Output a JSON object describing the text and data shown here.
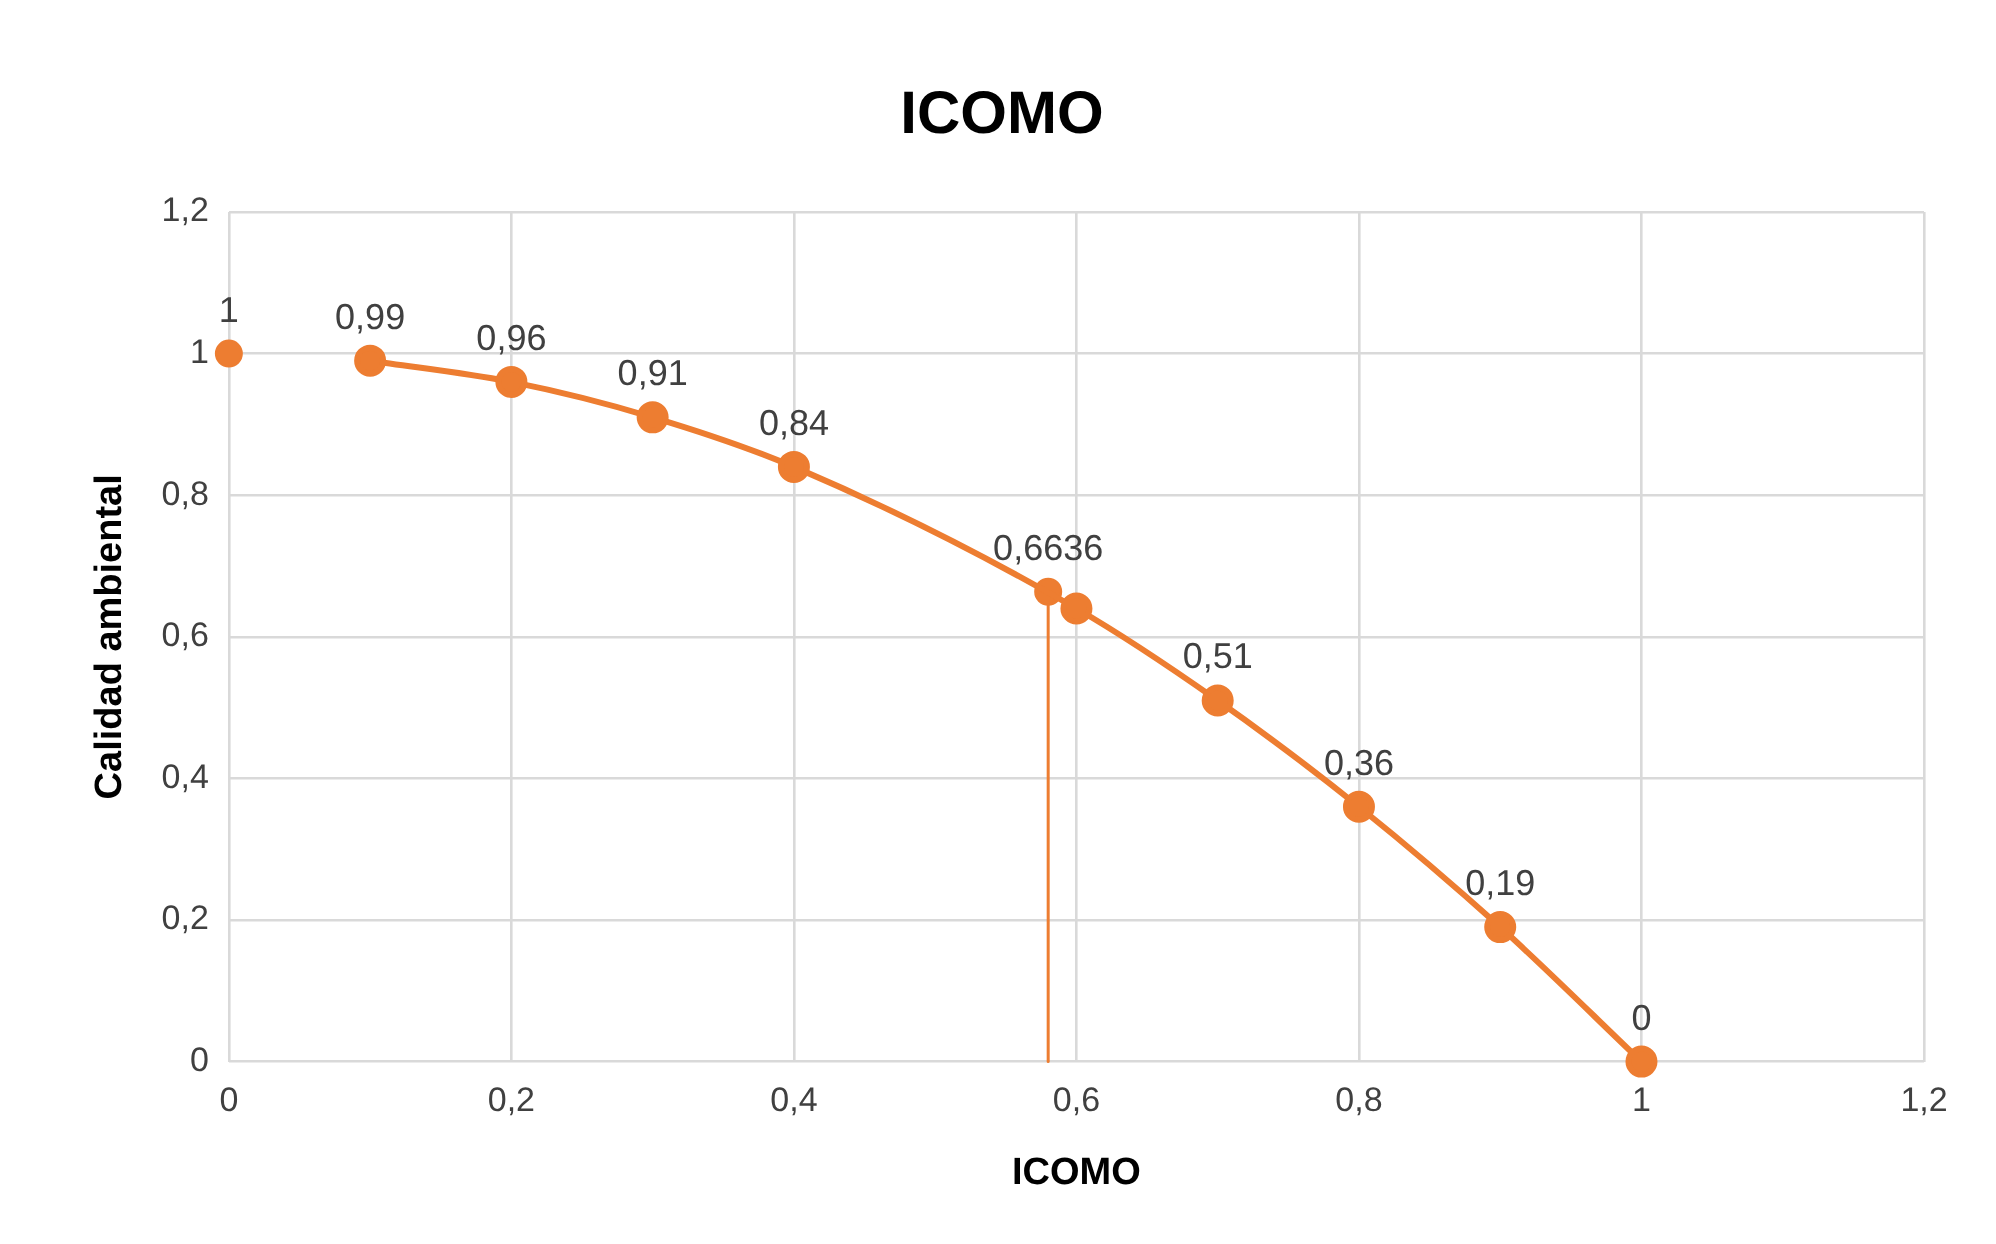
{
  "chart_data": {
    "type": "line",
    "title": "ICOMO",
    "xlabel": "ICOMO",
    "ylabel": "Calidad ambiental",
    "xlim": [
      0,
      1.2
    ],
    "ylim": [
      0,
      1.2
    ],
    "xticks": [
      0,
      {
        "value": 0.2,
        "label": "0,2"
      },
      {
        "value": 0.4,
        "label": "0,4"
      },
      {
        "value": 0.6,
        "label": "0,6"
      },
      {
        "value": 0.8,
        "label": "0,8"
      },
      1,
      {
        "value": 1.2,
        "label": "1,2"
      }
    ],
    "yticks": [
      0,
      {
        "value": 0.2,
        "label": "0,2"
      },
      {
        "value": 0.4,
        "label": "0,4"
      },
      {
        "value": 0.6,
        "label": "0,6"
      },
      {
        "value": 0.8,
        "label": "0,8"
      },
      1,
      {
        "value": 1.2,
        "label": "1,2"
      }
    ],
    "grid": true,
    "legend": false,
    "series": [
      {
        "type": "line",
        "color": "#ed7d31",
        "marker": "circle",
        "x": [
          0.1,
          0.2,
          0.3,
          0.4,
          0.6,
          0.7,
          0.8,
          0.9,
          1
        ],
        "values": [
          0.99,
          0.96,
          0.91,
          0.84,
          0.64,
          0.51,
          0.36,
          0.19,
          0
        ],
        "value_labels": [
          "0,99",
          "0,96",
          "0,91",
          "0,84",
          null,
          "0,51",
          "0,36",
          "0,19",
          "0"
        ]
      },
      {
        "type": "scatter",
        "color": "#ed7d31",
        "marker": "circle",
        "x": [
          0,
          0.58
        ],
        "values": [
          1,
          0.6636
        ],
        "value_labels": [
          "1",
          "0,6636"
        ]
      },
      {
        "type": "line",
        "color": "#ed7d31",
        "marker": "none",
        "x": [
          0.58,
          0.58
        ],
        "values": [
          0,
          0.6636
        ]
      }
    ]
  }
}
